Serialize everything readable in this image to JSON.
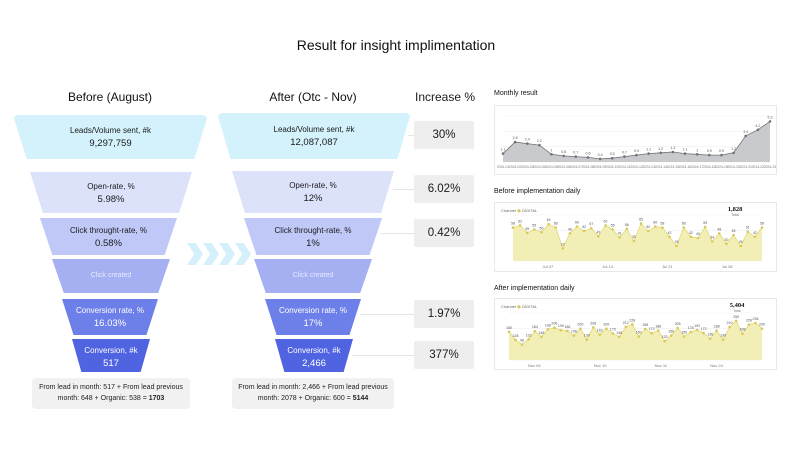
{
  "title": "Result for insight implimentation",
  "before": {
    "heading": "Before (August)",
    "stages": [
      {
        "label": "Leads/Volume sent, #k",
        "value": "9,297,759"
      },
      {
        "label": "Open-rate, %",
        "value": "5.98%"
      },
      {
        "label": "Click throught-rate, %",
        "value": "0.58%"
      },
      {
        "label": "Click created",
        "value": ""
      },
      {
        "label": "Conversion rate, %",
        "value": "16.03%"
      },
      {
        "label": "Conversion, #k",
        "value": "517"
      }
    ],
    "note_line1": "From lead in month: 517 + From lead previous",
    "note_line2": "month: 648 + Organic: 538 = ",
    "note_total": "1703"
  },
  "after": {
    "heading": "After (Otc - Nov)",
    "stages": [
      {
        "label": "Leads/Volume sent, #k",
        "value": "12,087,087"
      },
      {
        "label": "Open-rate, %",
        "value": "12%"
      },
      {
        "label": "Click throught-rate, %",
        "value": "1%"
      },
      {
        "label": "Click created",
        "value": ""
      },
      {
        "label": "Conversion rate, %",
        "value": "17%"
      },
      {
        "label": "Conversion, #k",
        "value": "2,466"
      }
    ],
    "note_line1": "From lead in month: 2,466 + From lead previous",
    "note_line2": "month: 2078 + Organic: 600 = ",
    "note_total": "5144"
  },
  "increase": {
    "heading": "Increase %",
    "values": [
      "30%",
      "6.02%",
      "0.42%",
      "1.97%",
      "377%"
    ]
  },
  "colors": {
    "monthly_fill": "#c9cacd",
    "monthly_line": "#707276",
    "daily_fill": "#f2efb6",
    "daily_line": "#e4d873",
    "daily_point": "#d8c95a"
  },
  "chart_data": [
    {
      "type": "area",
      "title": "Monthly result",
      "categories": [
        "2024-01",
        "2024-02",
        "2024-03",
        "2024-04",
        "2024-05",
        "2024-06",
        "2024-07",
        "2024-08",
        "2024-09",
        "2024-10",
        "2024-11",
        "2024-12",
        "2024-13",
        "2024-14",
        "2024-15",
        "2024-16",
        "2024-17",
        "2024-18",
        "2024-19",
        "2024-20",
        "2024-21",
        "2024-22",
        "2024-23"
      ],
      "values": [
        1.1,
        2.6,
        2.4,
        2.2,
        1.0,
        0.8,
        0.7,
        0.6,
        0.4,
        0.5,
        0.7,
        0.9,
        1.1,
        1.2,
        1.3,
        1.1,
        1.0,
        0.9,
        0.9,
        1.2,
        3.4,
        4.2,
        5.3
      ],
      "ylim": [
        0,
        6
      ],
      "grid": true
    },
    {
      "type": "area",
      "title": "Before implementation daily",
      "legend": [
        "Channel",
        "DIGITAL"
      ],
      "total": "1,828",
      "total_label": "Total",
      "x_ticks": [
        "Jul 07",
        "Jul 14",
        "Jul 21",
        "Jul 28"
      ],
      "values": [
        58,
        62,
        49,
        55,
        50,
        64,
        58,
        22,
        48,
        60,
        52,
        57,
        43,
        62,
        55,
        41,
        56,
        35,
        65,
        52,
        60,
        58,
        42,
        26,
        58,
        42,
        40,
        59,
        34,
        48,
        30,
        45,
        26,
        51,
        42,
        58
      ],
      "ylim": [
        0,
        80
      ],
      "grid": true
    },
    {
      "type": "area",
      "title": "After implementation daily",
      "legend": [
        "Channel",
        "DIGITAL"
      ],
      "total": "5,404",
      "total_label": "Total",
      "x_ticks": [
        "Nov 04",
        "Nov 10",
        "Nov 11",
        "Nov 24"
      ],
      "values": [
        180,
        128,
        98,
        132,
        184,
        148,
        196,
        206,
        190,
        186,
        156,
        200,
        130,
        208,
        162,
        200,
        170,
        148,
        212,
        228,
        150,
        198,
        172,
        188,
        120,
        156,
        205,
        150,
        178,
        192,
        172,
        136,
        188,
        130,
        210,
        250,
        168,
        226,
        236,
        200
      ],
      "ylim": [
        0,
        300
      ],
      "grid": true
    }
  ]
}
